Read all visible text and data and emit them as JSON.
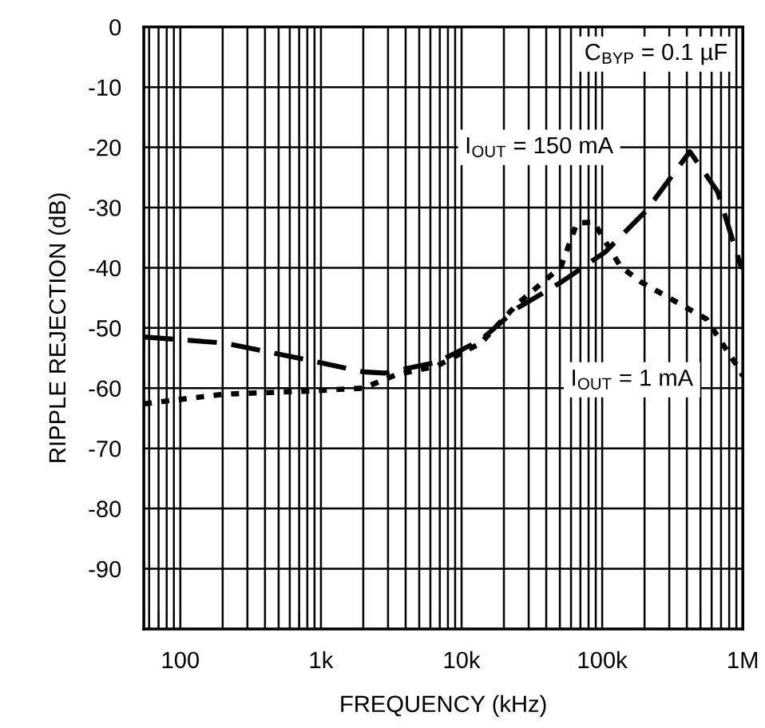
{
  "chart_data": {
    "type": "line",
    "xlabel": "FREQUENCY (kHz)",
    "ylabel": "RIPPLE REJECTION (dB)",
    "log": "x",
    "xlim": [
      55,
      1000000
    ],
    "ylim": [
      -100,
      0
    ],
    "xticks": [
      {
        "value": 100,
        "label": "100"
      },
      {
        "value": 1000,
        "label": "1k"
      },
      {
        "value": 10000,
        "label": "10k"
      },
      {
        "value": 100000,
        "label": "100k"
      },
      {
        "value": 1000000,
        "label": "1M"
      }
    ],
    "yticks": [
      0,
      -10,
      -20,
      -30,
      -40,
      -50,
      -60,
      -70,
      -80,
      -90,
      {
        "value": -100,
        "label": null
      }
    ],
    "grid": true,
    "legend": false,
    "marker": "none",
    "series": [
      {
        "color": "#000000",
        "line_style": "dashed",
        "x": [
          55,
          204,
          760,
          2000,
          2830,
          6700,
          13700,
          25000,
          51000,
          105000,
          206000,
          420000,
          660000,
          970000,
          1000000
        ],
        "values": [
          -51.5,
          -52.5,
          -55.2,
          -57.3,
          -57.5,
          -55.7,
          -52,
          -46.7,
          -42.4,
          -37.4,
          -30.5,
          -20.7,
          -27.3,
          -39.8,
          -40
        ]
      },
      {
        "color": "#000000",
        "line_style": "dotted",
        "x": [
          55,
          204,
          760,
          2000,
          3400,
          6700,
          13700,
          25000,
          51000,
          66000,
          87000,
          135000,
          190000,
          550000,
          970000,
          1000000
        ],
        "values": [
          -62.6,
          -61,
          -60.5,
          -60,
          -57.8,
          -56.3,
          -52.5,
          -46,
          -39.8,
          -32.6,
          -32.4,
          -39.8,
          -42.4,
          -48.5,
          -57.3,
          -58
        ]
      }
    ],
    "annotations": [
      "C$_{BYP}$ = 0.1 µF",
      "I$_{OUT}$ = 150 mA",
      "I$_{OUT}$ = 1 mA"
    ]
  }
}
